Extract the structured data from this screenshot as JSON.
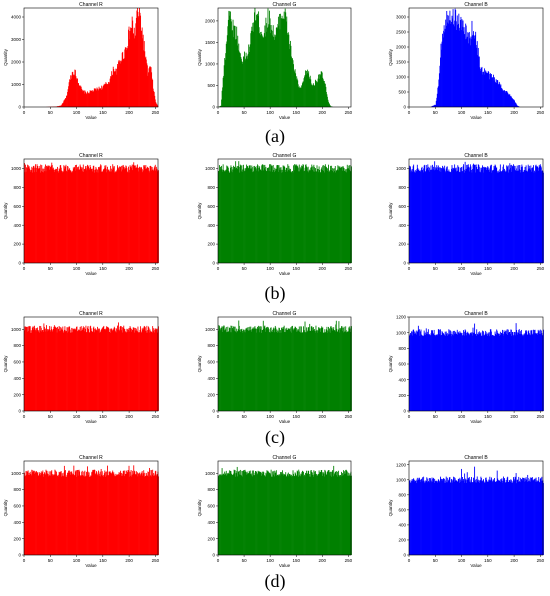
{
  "figure": {
    "rows": [
      {
        "label": "(a)"
      },
      {
        "label": "(b)"
      },
      {
        "label": "(c)"
      },
      {
        "label": "(d)"
      }
    ]
  },
  "chart_data": [
    {
      "type": "bar",
      "panel": "a",
      "title": "Channel R",
      "color": "#ff0000",
      "xlabel": "Value",
      "ylabel": "Quantity",
      "xlim": [
        0,
        255
      ],
      "ylim": [
        0,
        4400
      ],
      "xticks": [
        0,
        50,
        100,
        150,
        200,
        250
      ],
      "yticks": [
        0,
        1000,
        2000,
        3000,
        4000
      ],
      "x": [
        0,
        20,
        40,
        60,
        70,
        80,
        85,
        90,
        95,
        100,
        110,
        120,
        130,
        140,
        150,
        160,
        165,
        170,
        175,
        180,
        185,
        190,
        195,
        200,
        205,
        210,
        215,
        220,
        225,
        230,
        235,
        240,
        245,
        250,
        255
      ],
      "values": [
        0,
        0,
        0,
        20,
        60,
        450,
        1050,
        1500,
        1600,
        1300,
        700,
        620,
        720,
        800,
        900,
        1100,
        1350,
        1750,
        1550,
        1950,
        2200,
        2400,
        2800,
        3300,
        3700,
        3150,
        4250,
        4050,
        3200,
        2300,
        1500,
        1800,
        900,
        200,
        0
      ]
    },
    {
      "type": "bar",
      "panel": "a",
      "title": "Channel G",
      "color": "#008000",
      "xlabel": "Value",
      "ylabel": "Quantity",
      "xlim": [
        0,
        255
      ],
      "ylim": [
        0,
        2300
      ],
      "xticks": [
        0,
        50,
        100,
        150,
        200,
        250
      ],
      "yticks": [
        0,
        500,
        1000,
        1500,
        2000
      ],
      "x": [
        0,
        5,
        10,
        15,
        20,
        25,
        30,
        35,
        40,
        45,
        50,
        55,
        60,
        65,
        70,
        75,
        80,
        85,
        90,
        95,
        100,
        105,
        110,
        115,
        120,
        125,
        130,
        135,
        140,
        145,
        150,
        155,
        160,
        165,
        170,
        175,
        180,
        185,
        190,
        195,
        200,
        205,
        210,
        215,
        220,
        255
      ],
      "values": [
        0,
        30,
        800,
        1500,
        2200,
        2000,
        1800,
        1700,
        1300,
        1100,
        1150,
        1200,
        1400,
        1800,
        2200,
        2100,
        1850,
        1700,
        1800,
        2100,
        1950,
        1750,
        1650,
        1900,
        2150,
        2200,
        2000,
        1600,
        1250,
        900,
        650,
        450,
        450,
        700,
        850,
        700,
        500,
        550,
        650,
        800,
        700,
        500,
        150,
        20,
        0,
        0
      ]
    },
    {
      "type": "bar",
      "panel": "a",
      "title": "Channel B",
      "color": "#0000ff",
      "xlabel": "Value",
      "ylabel": "Quantity",
      "xlim": [
        0,
        255
      ],
      "ylim": [
        0,
        3300
      ],
      "xticks": [
        0,
        50,
        100,
        150,
        200,
        250
      ],
      "yticks": [
        0,
        500,
        1000,
        1500,
        2000,
        2500,
        3000
      ],
      "x": [
        0,
        40,
        50,
        55,
        60,
        65,
        70,
        75,
        80,
        85,
        90,
        95,
        100,
        105,
        110,
        115,
        120,
        125,
        130,
        135,
        140,
        145,
        150,
        155,
        160,
        165,
        170,
        175,
        180,
        185,
        190,
        195,
        200,
        205,
        210,
        255
      ],
      "values": [
        0,
        0,
        80,
        700,
        2000,
        2700,
        2900,
        3150,
        3100,
        3000,
        2900,
        2850,
        2700,
        2550,
        2400,
        2250,
        2650,
        2400,
        1900,
        1350,
        1150,
        1200,
        1100,
        1000,
        1000,
        850,
        800,
        700,
        550,
        500,
        400,
        300,
        200,
        50,
        0,
        0
      ]
    },
    {
      "type": "bar",
      "panel": "b",
      "title": "Channel R",
      "color": "#ff0000",
      "xlabel": "Value",
      "ylabel": "Quantity",
      "xlim": [
        0,
        255
      ],
      "ylim": [
        0,
        1100
      ],
      "xticks": [
        0,
        50,
        100,
        150,
        200,
        250
      ],
      "yticks": [
        0,
        200,
        400,
        600,
        800,
        1000
      ],
      "uniform": {
        "mean": 1000,
        "spread": 45,
        "peak": 1080
      }
    },
    {
      "type": "bar",
      "panel": "b",
      "title": "Channel G",
      "color": "#008000",
      "xlabel": "Value",
      "ylabel": "Quantity",
      "xlim": [
        0,
        255
      ],
      "ylim": [
        0,
        1100
      ],
      "xticks": [
        0,
        50,
        100,
        150,
        200,
        250
      ],
      "yticks": [
        0,
        200,
        400,
        600,
        800,
        1000
      ],
      "uniform": {
        "mean": 1000,
        "spread": 45,
        "peak": 1080
      }
    },
    {
      "type": "bar",
      "panel": "b",
      "title": "Channel B",
      "color": "#0000ff",
      "xlabel": "Value",
      "ylabel": "Quantity",
      "xlim": [
        0,
        255
      ],
      "ylim": [
        0,
        1100
      ],
      "xticks": [
        0,
        50,
        100,
        150,
        200,
        250
      ],
      "yticks": [
        0,
        200,
        400,
        600,
        800,
        1000
      ],
      "uniform": {
        "mean": 1000,
        "spread": 45,
        "peak": 1080
      }
    },
    {
      "type": "bar",
      "panel": "c",
      "title": "Channel R",
      "color": "#ff0000",
      "xlabel": "Value",
      "ylabel": "Quantity",
      "xlim": [
        0,
        255
      ],
      "ylim": [
        0,
        1150
      ],
      "xticks": [
        0,
        50,
        100,
        150,
        200,
        250
      ],
      "yticks": [
        0,
        200,
        400,
        600,
        800,
        1000
      ],
      "uniform": {
        "mean": 1000,
        "spread": 45,
        "peak": 1100
      }
    },
    {
      "type": "bar",
      "panel": "c",
      "title": "Channel G",
      "color": "#008000",
      "xlabel": "Value",
      "ylabel": "Quantity",
      "xlim": [
        0,
        255
      ],
      "ylim": [
        0,
        1150
      ],
      "xticks": [
        0,
        50,
        100,
        150,
        200,
        250
      ],
      "yticks": [
        0,
        200,
        400,
        600,
        800,
        1000
      ],
      "uniform": {
        "mean": 1000,
        "spread": 45,
        "peak": 1110
      }
    },
    {
      "type": "bar",
      "panel": "c",
      "title": "Channel B",
      "color": "#0000ff",
      "xlabel": "Value",
      "ylabel": "Quantity",
      "xlim": [
        0,
        255
      ],
      "ylim": [
        0,
        1200
      ],
      "xticks": [
        0,
        50,
        100,
        150,
        200,
        250
      ],
      "yticks": [
        0,
        200,
        400,
        600,
        800,
        1000,
        1200
      ],
      "uniform": {
        "mean": 1000,
        "spread": 45,
        "peak": 1140
      }
    },
    {
      "type": "bar",
      "panel": "d",
      "title": "Channel R",
      "color": "#ff0000",
      "xlabel": "Value",
      "ylabel": "Quantity",
      "xlim": [
        0,
        255
      ],
      "ylim": [
        0,
        1150
      ],
      "xticks": [
        0,
        50,
        100,
        150,
        200,
        250
      ],
      "yticks": [
        0,
        200,
        400,
        600,
        800,
        1000
      ],
      "uniform": {
        "mean": 1000,
        "spread": 45,
        "peak": 1100
      }
    },
    {
      "type": "bar",
      "panel": "d",
      "title": "Channel G",
      "color": "#008000",
      "xlabel": "Value",
      "ylabel": "Quantity",
      "xlim": [
        0,
        255
      ],
      "ylim": [
        0,
        1150
      ],
      "xticks": [
        0,
        50,
        100,
        150,
        200,
        250
      ],
      "yticks": [
        0,
        200,
        400,
        600,
        800,
        1000
      ],
      "uniform": {
        "mean": 1000,
        "spread": 45,
        "peak": 1110
      }
    },
    {
      "type": "bar",
      "panel": "d",
      "title": "Channel B",
      "color": "#0000ff",
      "xlabel": "Value",
      "ylabel": "Quantity",
      "xlim": [
        0,
        255
      ],
      "ylim": [
        0,
        1250
      ],
      "xticks": [
        0,
        50,
        100,
        150,
        200,
        250
      ],
      "yticks": [
        0,
        200,
        400,
        600,
        800,
        1000,
        1200
      ],
      "uniform": {
        "mean": 1000,
        "spread": 45,
        "peak": 1180
      }
    }
  ]
}
